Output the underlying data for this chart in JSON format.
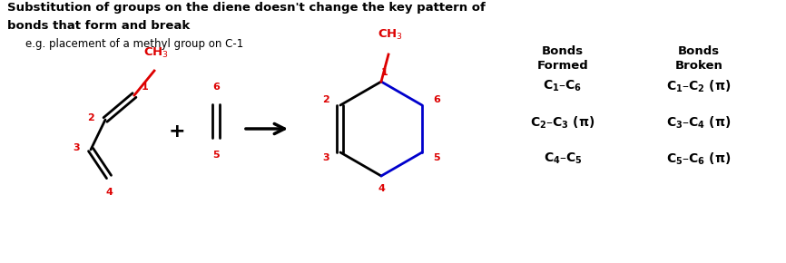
{
  "title_line1": "Substitution of groups on the diene doesn't change the key pattern of",
  "title_line2": "bonds that form and break",
  "subtitle": "e.g. placement of a methyl group on C-1",
  "bg_color": "#ffffff",
  "red": "#dd0000",
  "blue": "#0000cc",
  "black": "#000000"
}
